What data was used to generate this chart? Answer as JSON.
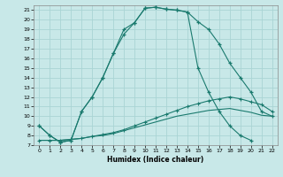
{
  "xlabel": "Humidex (Indice chaleur)",
  "bg_color": "#c8e8e8",
  "grid_color": "#aad4d4",
  "line_color": "#1a7a6e",
  "xlim": [
    -0.5,
    22.5
  ],
  "ylim": [
    7,
    21.5
  ],
  "xticks": [
    0,
    1,
    2,
    3,
    4,
    5,
    6,
    7,
    8,
    9,
    10,
    11,
    12,
    13,
    14,
    15,
    16,
    17,
    18,
    19,
    20,
    21,
    22
  ],
  "yticks": [
    7,
    8,
    9,
    10,
    11,
    12,
    13,
    14,
    15,
    16,
    17,
    18,
    19,
    20,
    21
  ],
  "line1_x": [
    0,
    1,
    2,
    3,
    4,
    5,
    6,
    7,
    8,
    9,
    10,
    11,
    12,
    13,
    14,
    15,
    16,
    17,
    18,
    19,
    20,
    21,
    22
  ],
  "line1_y": [
    9.0,
    8.0,
    7.3,
    7.5,
    10.5,
    12.0,
    14.0,
    16.5,
    18.5,
    19.7,
    21.2,
    21.3,
    21.1,
    21.0,
    20.8,
    19.8,
    19.0,
    17.5,
    15.5,
    14.0,
    12.5,
    10.5,
    10.0
  ],
  "line2_x": [
    0,
    1,
    2,
    3,
    4,
    5,
    6,
    7,
    8,
    9,
    10,
    11,
    12,
    13,
    14,
    15,
    16,
    17,
    18,
    19,
    20
  ],
  "line2_y": [
    9.0,
    8.0,
    7.3,
    7.5,
    10.5,
    12.0,
    14.0,
    16.5,
    19.0,
    19.7,
    21.2,
    21.3,
    21.1,
    21.0,
    20.8,
    15.0,
    12.5,
    10.5,
    9.0,
    8.0,
    7.5
  ],
  "line3_x": [
    0,
    1,
    2,
    3,
    4,
    5,
    6,
    7,
    8,
    9,
    10,
    11,
    12,
    13,
    14,
    15,
    16,
    17,
    18,
    19,
    20,
    21,
    22
  ],
  "line3_y": [
    7.5,
    7.5,
    7.5,
    7.6,
    7.7,
    7.9,
    8.1,
    8.3,
    8.6,
    9.0,
    9.4,
    9.8,
    10.2,
    10.6,
    11.0,
    11.3,
    11.6,
    11.8,
    12.0,
    11.8,
    11.5,
    11.2,
    10.5
  ],
  "line4_x": [
    0,
    1,
    2,
    3,
    4,
    5,
    6,
    7,
    8,
    9,
    10,
    11,
    12,
    13,
    14,
    15,
    16,
    17,
    18,
    19,
    20,
    21,
    22
  ],
  "line4_y": [
    7.5,
    7.5,
    7.5,
    7.6,
    7.7,
    7.9,
    8.0,
    8.2,
    8.5,
    8.8,
    9.1,
    9.4,
    9.7,
    10.0,
    10.2,
    10.4,
    10.6,
    10.7,
    10.8,
    10.6,
    10.4,
    10.1,
    10.0
  ]
}
